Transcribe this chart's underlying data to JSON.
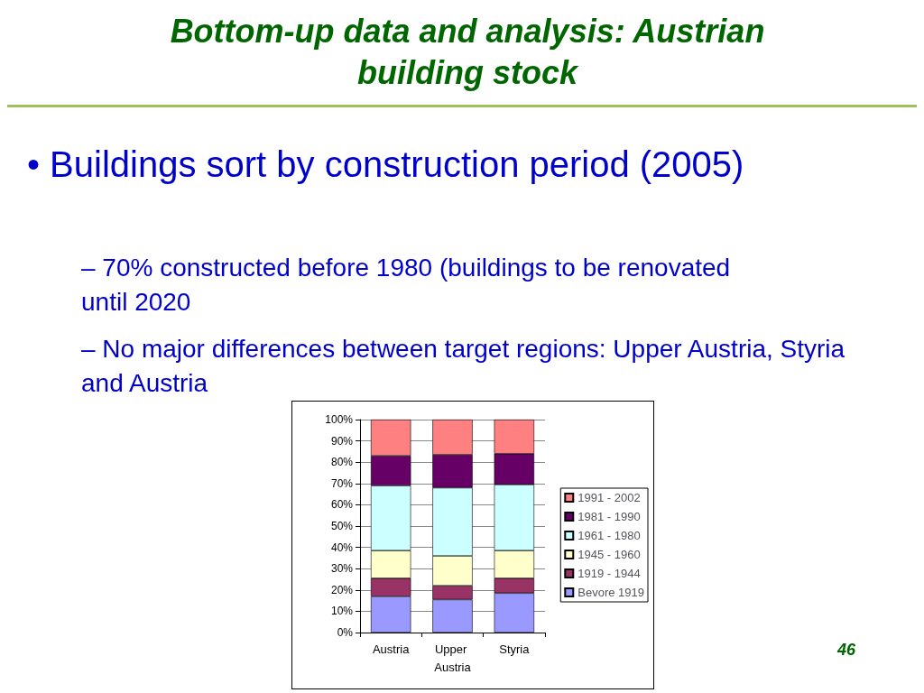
{
  "chart_data": {
    "type": "bar",
    "stacked": true,
    "title": "Bottom-up data and analysis: Austrian building stock",
    "annotations": [
      "• Buildings sort by construction period (2005)",
      "– 70% constructed before 1980 (buildings to be renovated until 2020",
      "– No major differences between target regions: Upper Austria, Styria and Austria",
      "46"
    ],
    "categories": [
      "Austria",
      "Upper Austria",
      "Styria"
    ],
    "series": [
      {
        "name": "Bevore 1919",
        "color": "#9999ff",
        "values": [
          17,
          15.5,
          18.5
        ]
      },
      {
        "name": "1919 - 1944",
        "color": "#993366",
        "values": [
          8.5,
          6.5,
          7
        ]
      },
      {
        "name": "1945 - 1960",
        "color": "#ffffcc",
        "values": [
          13,
          14,
          13
        ]
      },
      {
        "name": "1961 - 1980",
        "color": "#ccffff",
        "values": [
          30.5,
          32,
          31
        ]
      },
      {
        "name": "1981 - 1990",
        "color": "#660066",
        "values": [
          14,
          15.5,
          14.5
        ]
      },
      {
        "name": "1991 - 2002",
        "color": "#ff8080",
        "values": [
          17,
          16.5,
          16
        ]
      }
    ],
    "ylim": [
      0,
      100
    ],
    "yticks": [
      {
        "value": 0,
        "label": "0%"
      },
      {
        "value": 10,
        "label": "10%"
      },
      {
        "value": 20,
        "label": "20%"
      },
      {
        "value": 30,
        "label": "30%"
      },
      {
        "value": 40,
        "label": "40%"
      },
      {
        "value": 50,
        "label": "50%"
      },
      {
        "value": 60,
        "label": "60%"
      },
      {
        "value": 70,
        "label": "70%"
      },
      {
        "value": 80,
        "label": "80%"
      },
      {
        "value": 90,
        "label": "90%"
      },
      {
        "value": 100,
        "label": "100%"
      }
    ],
    "grid": "y",
    "legend": "right"
  }
}
